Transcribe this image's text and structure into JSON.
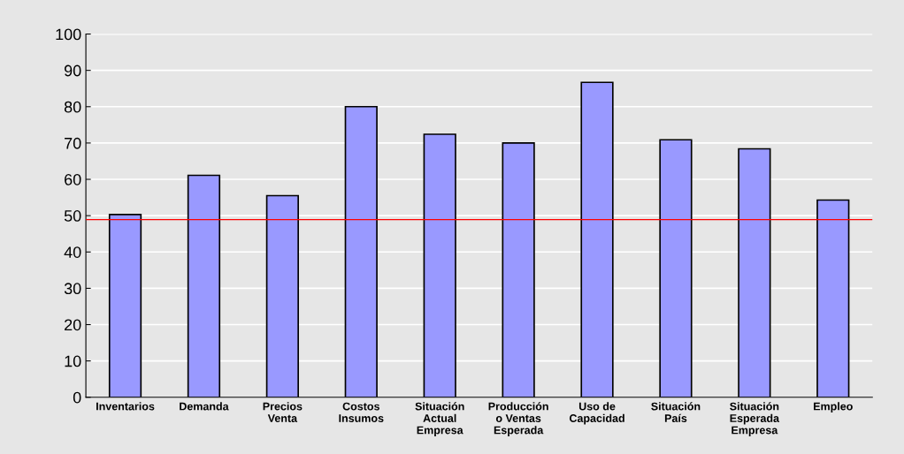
{
  "chart_data": {
    "type": "bar",
    "categories": [
      "Inventarios",
      "Demanda",
      "Precios\nVenta",
      "Costos\nInsumos",
      "Situación\nActual\nEmpresa",
      "Producción\no Ventas\nEsperada",
      "Uso de\nCapacidad",
      "Situación\nPaís",
      "Situación\nEsperada\nEmpresa",
      "Empleo"
    ],
    "values": [
      50.3,
      61.1,
      55.5,
      80,
      72.4,
      70,
      86.7,
      70.9,
      68.4,
      54.3
    ],
    "color": "#9999ff",
    "ylim": [
      0,
      100
    ],
    "yticks": [
      0,
      10,
      20,
      30,
      40,
      50,
      60,
      70,
      80,
      90,
      100
    ],
    "grid": "y",
    "ref_lines": [
      {
        "axis": "y",
        "value": 48.9,
        "color": "#ff0000"
      }
    ]
  }
}
